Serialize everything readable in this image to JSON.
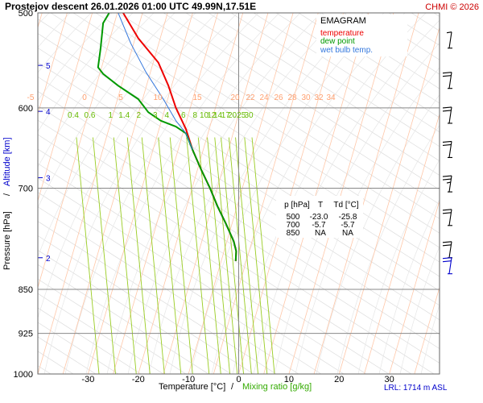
{
  "header": {
    "title": "Prostejov   descent   26.01.2026 01:00 UTC  49.99N,17.51E",
    "copyright": "CHMI © 2026"
  },
  "legend": {
    "title": "EMAGRAM",
    "items": [
      {
        "label": "temperature",
        "color": "#ee0000"
      },
      {
        "label": "dew point",
        "color": "#009900"
      },
      {
        "label": "wet bulb temp.",
        "color": "#3377dd"
      }
    ]
  },
  "table": {
    "headers": [
      "p [hPa]",
      "T",
      "Td [°C]"
    ],
    "rows": [
      [
        "500",
        "-23.0",
        "-25.8"
      ],
      [
        "700",
        "-5.7",
        "-5.7"
      ],
      [
        "850",
        "NA",
        "NA"
      ]
    ]
  },
  "footer": {
    "lrl": "LRL: 1714 m ASL"
  },
  "axes": {
    "x_label_temp": "Temperature [°C]",
    "x_label_sep": "/",
    "x_label_mix": "Mixing ratio [g/kg]",
    "y_label_p": "Pressure [hPa]",
    "y_label_sep": "/",
    "y_label_alt": "Altitude [km]"
  },
  "chart_data": {
    "type": "line",
    "x_axis": {
      "label": "Temperature [°C]",
      "range": [
        -40,
        40
      ],
      "ticks": [
        -30,
        -20,
        -10,
        0,
        10,
        20,
        30
      ]
    },
    "y_axis": {
      "label": "Pressure [hPa]",
      "scale": "log",
      "range": [
        1000,
        500
      ],
      "ticks": [
        500,
        600,
        700,
        850,
        925,
        1000
      ]
    },
    "altitude_ticks": [
      {
        "label": "5",
        "p": 553
      },
      {
        "label": "4",
        "p": 604
      },
      {
        "label": "3",
        "p": 686
      },
      {
        "label": "2",
        "p": 800
      }
    ],
    "mixing_ratio_labels": [
      "0.4",
      "0.6",
      "1",
      "1.4",
      "2",
      "3",
      "4",
      "6",
      "8",
      "10",
      "12",
      "14",
      "17",
      "20",
      "25",
      "30"
    ],
    "mixing_ratio_values": [
      0.4,
      0.6,
      1,
      1.4,
      2,
      3,
      4,
      6,
      8,
      10,
      12,
      14,
      17,
      20,
      25,
      30
    ],
    "isotherm_labels": [
      "-5",
      "0",
      "5",
      "10",
      "15",
      "20",
      "22",
      "24",
      "26",
      "28",
      "30",
      "32",
      "34"
    ],
    "series": [
      {
        "name": "temperature",
        "color": "#ee0000",
        "points": [
          {
            "p": 500,
            "t": -23.0
          },
          {
            "p": 525,
            "t": -20.0
          },
          {
            "p": 550,
            "t": -16.0
          },
          {
            "p": 575,
            "t": -14.0
          },
          {
            "p": 600,
            "t": -12.5
          },
          {
            "p": 625,
            "t": -10.5
          },
          {
            "p": 650,
            "t": -9.2
          },
          {
            "p": 675,
            "t": -7.5
          },
          {
            "p": 700,
            "t": -5.7
          },
          {
            "p": 725,
            "t": -4.2
          },
          {
            "p": 750,
            "t": -2.5
          },
          {
            "p": 775,
            "t": -1.0
          },
          {
            "p": 790,
            "t": -0.5
          },
          {
            "p": 805,
            "t": -0.6
          }
        ]
      },
      {
        "name": "dew point",
        "color": "#009900",
        "points": [
          {
            "p": 500,
            "t": -25.8
          },
          {
            "p": 510,
            "t": -27.0
          },
          {
            "p": 535,
            "t": -27.5
          },
          {
            "p": 555,
            "t": -28.0
          },
          {
            "p": 562,
            "t": -27.0
          },
          {
            "p": 575,
            "t": -24.0
          },
          {
            "p": 590,
            "t": -20.0
          },
          {
            "p": 605,
            "t": -18.0
          },
          {
            "p": 615,
            "t": -15.5
          },
          {
            "p": 622,
            "t": -12.5
          },
          {
            "p": 630,
            "t": -10.5
          },
          {
            "p": 650,
            "t": -9.2
          },
          {
            "p": 675,
            "t": -7.5
          },
          {
            "p": 700,
            "t": -5.7
          },
          {
            "p": 725,
            "t": -4.2
          },
          {
            "p": 750,
            "t": -2.5
          },
          {
            "p": 775,
            "t": -1.0
          },
          {
            "p": 790,
            "t": -0.5
          },
          {
            "p": 805,
            "t": -0.6
          }
        ]
      },
      {
        "name": "wet bulb temp.",
        "color": "#3377dd",
        "points": [
          {
            "p": 500,
            "t": -24.0
          },
          {
            "p": 530,
            "t": -21.5
          },
          {
            "p": 560,
            "t": -18.5
          },
          {
            "p": 590,
            "t": -15.0
          },
          {
            "p": 615,
            "t": -12.5
          },
          {
            "p": 630,
            "t": -10.5
          },
          {
            "p": 650,
            "t": -9.2
          }
        ]
      }
    ],
    "wind_barbs": [
      {
        "p": 535,
        "speed": 5,
        "color": "#000000"
      },
      {
        "p": 578,
        "speed": 20,
        "color": "#000000"
      },
      {
        "p": 618,
        "speed": 20,
        "color": "#000000"
      },
      {
        "p": 660,
        "speed": 20,
        "color": "#000000"
      },
      {
        "p": 705,
        "speed": 25,
        "color": "#000000"
      },
      {
        "p": 752,
        "speed": 20,
        "color": "#000000"
      },
      {
        "p": 800,
        "speed": 20,
        "color": "#000000"
      },
      {
        "p": 825,
        "speed": 20,
        "color": "#0000cc"
      }
    ]
  }
}
